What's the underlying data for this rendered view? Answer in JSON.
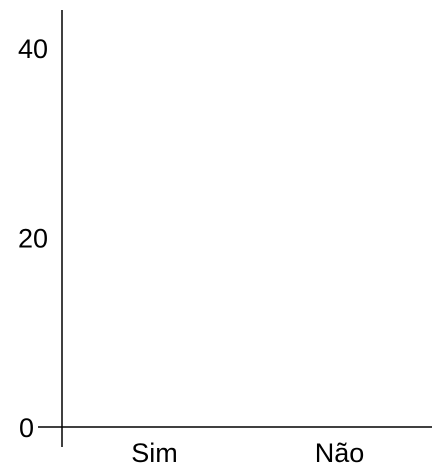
{
  "chart_data": {
    "type": "bar",
    "categories": [
      "Sim",
      "Não"
    ],
    "values": [
      0,
      0
    ],
    "title": "",
    "xlabel": "",
    "ylabel": "",
    "ylim": [
      0,
      44
    ],
    "yticks": [
      0,
      20,
      40
    ],
    "grid": false,
    "colors": {
      "axis": "#000000",
      "bar": "#4a4a4a"
    }
  }
}
